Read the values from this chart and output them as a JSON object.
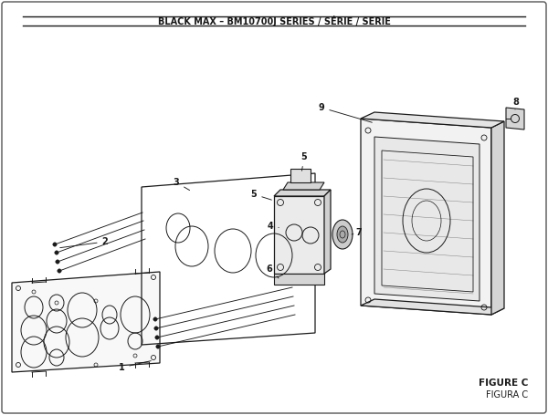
{
  "title": "BLACK MAX – BM10700J SERIES / SÉRIE / SERIE",
  "figure_label": "FIGURE C",
  "figure_label2": "FIGURA C",
  "bg_color": "#ffffff",
  "line_color": "#1a1a1a"
}
